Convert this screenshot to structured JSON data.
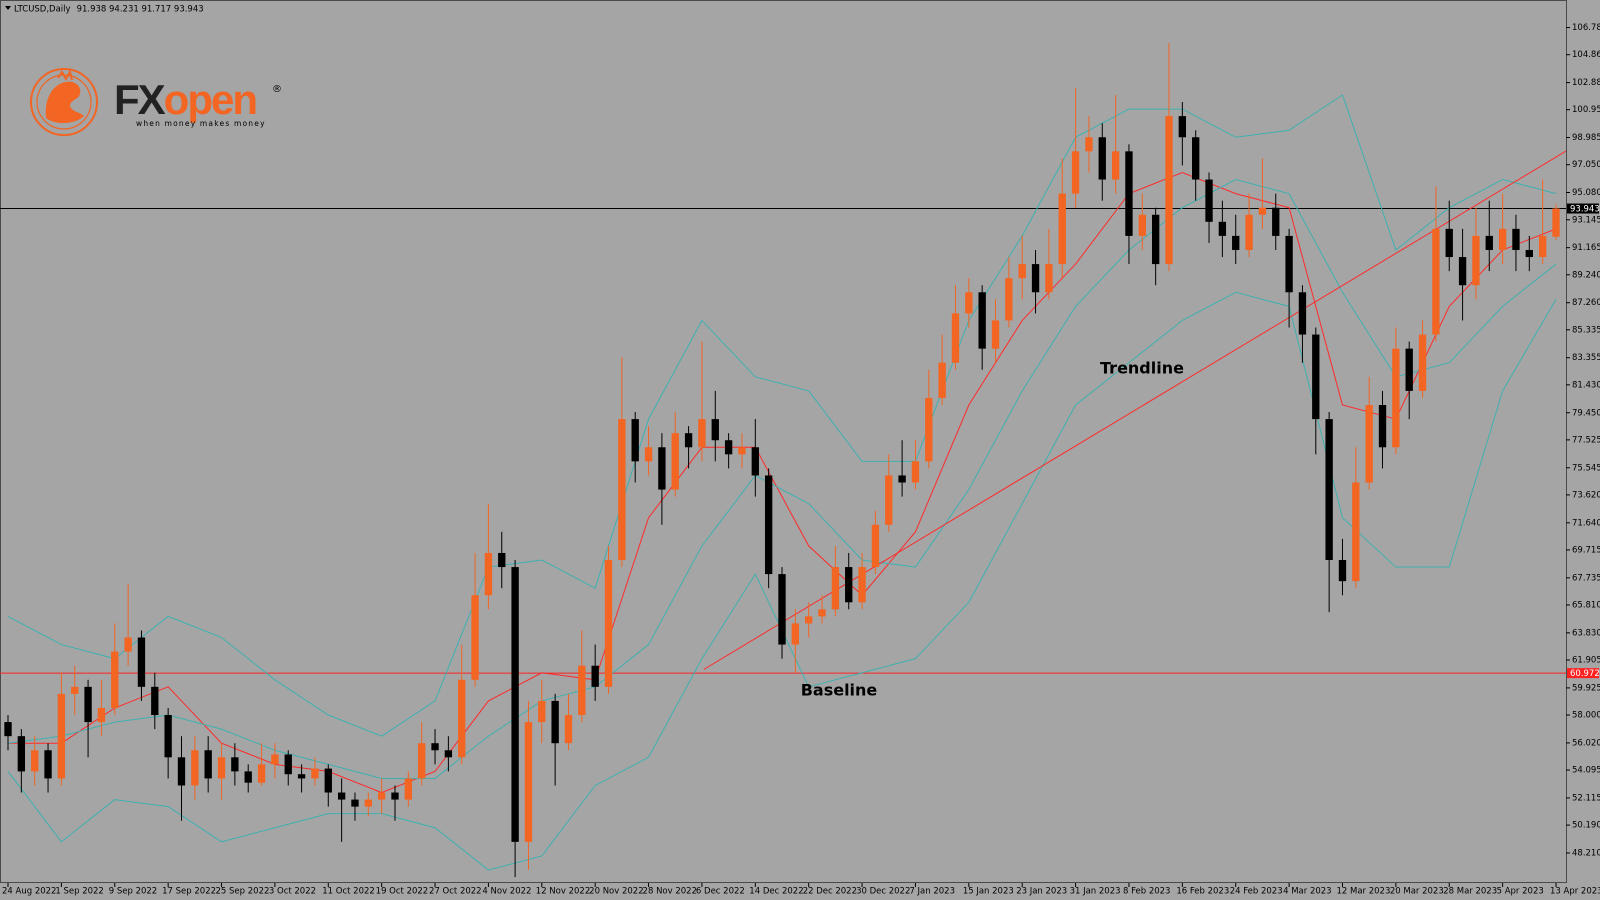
{
  "chart_data": {
    "type": "candlestick",
    "title": "LTCUSD,Daily",
    "quote": "91.938 94.231 91.717 93.943",
    "up_color": "#f26522",
    "down_color": "#000000",
    "xlim": [
      -1.2,
      233.5
    ],
    "ylim": [
      46.08,
      108.74
    ],
    "x": [
      0,
      2,
      4,
      6,
      8,
      10,
      12,
      14,
      16,
      18,
      20,
      22,
      24,
      26,
      28,
      30,
      32,
      34,
      36,
      38,
      40,
      42,
      44,
      46,
      48,
      50,
      52,
      54,
      56,
      58,
      60,
      62,
      64,
      66,
      68,
      70,
      72,
      74,
      76,
      78,
      80,
      82,
      84,
      86,
      88,
      90,
      92,
      94,
      96,
      98,
      100,
      102,
      104,
      106,
      108,
      110,
      112,
      114,
      116,
      118,
      120,
      122,
      124,
      126,
      128,
      130,
      132,
      134,
      136,
      138,
      140,
      142,
      144,
      146,
      148,
      150,
      152,
      154,
      156,
      158,
      160,
      162,
      164,
      166,
      168,
      170,
      172,
      174,
      176,
      178,
      180,
      182,
      184,
      186,
      188,
      190,
      192,
      194,
      196,
      198,
      200,
      202,
      204,
      206,
      208,
      210,
      212,
      214,
      216,
      218,
      220,
      222,
      224,
      226,
      228,
      230,
      232
    ],
    "open": [
      57.5,
      56.5,
      54.0,
      55.5,
      53.5,
      59.5,
      60.0,
      57.5,
      58.5,
      62.5,
      63.5,
      60.0,
      58.0,
      55.0,
      53.0,
      55.5,
      53.5,
      55.0,
      54.0,
      53.2,
      54.5,
      55.2,
      53.8,
      53.5,
      54.2,
      52.5,
      52.0,
      51.5,
      52.0,
      52.5,
      52.0,
      53.5,
      56.0,
      55.5,
      55.0,
      60.5,
      66.5,
      69.5,
      68.5,
      49.0,
      57.5,
      59.0,
      56.0,
      58.0,
      61.5,
      60.0,
      69.0,
      79.0,
      76.0,
      77.0,
      74.0,
      78.0,
      77.0,
      79.0,
      77.5,
      76.5,
      77.0,
      75.0,
      68.0,
      63.0,
      64.5,
      65.0,
      65.5,
      68.5,
      66.0,
      68.5,
      71.5,
      75.0,
      74.5,
      76.0,
      80.5,
      83.0,
      86.5,
      88.0,
      84.0,
      86.0,
      89.0,
      90.0,
      88.0,
      90.0,
      95.0,
      98.0,
      99.0,
      96.0,
      98.0,
      92.0,
      93.5,
      90.0,
      100.5,
      99.0,
      96.0,
      93.0,
      92.0,
      91.0,
      93.5,
      94.0,
      92.0,
      88.0,
      85.0,
      79.0,
      69.0,
      67.5,
      74.5,
      80.0,
      77.0,
      84.0,
      81.0,
      85.0,
      92.5,
      90.5,
      88.5,
      92.0,
      91.0,
      92.5,
      91.0,
      90.5,
      91.938
    ],
    "high": [
      58.0,
      57.0,
      56.5,
      56.0,
      61.0,
      61.5,
      60.5,
      60.5,
      64.5,
      67.3,
      64.0,
      61.0,
      58.5,
      56.5,
      56.5,
      56.5,
      56.0,
      56.0,
      54.5,
      56.0,
      56.0,
      55.5,
      54.5,
      55.0,
      54.5,
      53.5,
      52.5,
      52.5,
      53.5,
      53.0,
      54.0,
      57.5,
      57.0,
      56.5,
      63.0,
      69.5,
      73.0,
      71.0,
      69.0,
      59.0,
      60.5,
      59.5,
      59.5,
      64.0,
      63.0,
      70.0,
      83.4,
      79.5,
      78.5,
      78.0,
      79.5,
      78.5,
      84.5,
      81.0,
      78.0,
      78.0,
      79.0,
      75.5,
      68.5,
      65.5,
      66.0,
      66.5,
      70.0,
      69.5,
      69.5,
      72.5,
      76.5,
      77.5,
      77.5,
      82.5,
      85.0,
      88.5,
      89.0,
      88.5,
      87.5,
      90.5,
      92.0,
      91.0,
      92.5,
      97.5,
      102.5,
      100.5,
      100.0,
      102.0,
      98.5,
      95.0,
      94.0,
      105.7,
      101.5,
      99.5,
      96.5,
      94.5,
      93.5,
      95.0,
      97.5,
      95.0,
      92.5,
      88.5,
      85.5,
      79.5,
      70.5,
      77.0,
      82.0,
      81.0,
      85.5,
      84.5,
      86.0,
      95.5,
      94.5,
      92.5,
      94.0,
      94.5,
      95.0,
      93.5,
      92.0,
      96.0,
      94.231
    ],
    "low": [
      55.5,
      52.5,
      53.0,
      52.5,
      53.0,
      58.0,
      55.0,
      56.5,
      58.0,
      61.5,
      59.0,
      57.0,
      53.5,
      50.5,
      52.0,
      52.5,
      52.0,
      53.0,
      52.5,
      53.0,
      53.5,
      53.0,
      52.5,
      53.0,
      51.5,
      49.0,
      50.5,
      50.8,
      51.0,
      50.5,
      51.5,
      53.0,
      54.5,
      54.0,
      54.5,
      60.0,
      65.5,
      67.0,
      46.5,
      47.0,
      56.0,
      53.0,
      55.5,
      57.5,
      59.0,
      59.5,
      68.5,
      74.5,
      75.0,
      71.5,
      73.5,
      75.5,
      76.0,
      76.0,
      75.5,
      75.5,
      73.5,
      67.0,
      62.0,
      61.0,
      63.5,
      64.5,
      65.0,
      65.5,
      65.5,
      68.0,
      71.0,
      73.5,
      74.0,
      75.5,
      80.0,
      82.5,
      85.5,
      82.5,
      83.0,
      85.5,
      87.5,
      86.5,
      87.5,
      89.0,
      94.0,
      96.5,
      94.5,
      95.0,
      90.0,
      91.0,
      88.5,
      89.5,
      97.0,
      94.5,
      91.5,
      90.5,
      90.0,
      90.5,
      92.5,
      91.0,
      85.5,
      83.0,
      76.5,
      65.3,
      66.5,
      67.0,
      74.0,
      75.5,
      76.5,
      79.0,
      80.5,
      84.5,
      89.5,
      86.0,
      87.5,
      89.5,
      90.0,
      89.5,
      89.5,
      90.0,
      91.717
    ],
    "close": [
      56.5,
      54.0,
      55.5,
      53.5,
      59.5,
      60.0,
      57.5,
      58.5,
      62.5,
      63.5,
      60.0,
      58.0,
      55.0,
      53.0,
      55.5,
      53.5,
      55.0,
      54.0,
      53.2,
      54.5,
      55.2,
      53.8,
      53.5,
      54.2,
      52.5,
      52.0,
      51.5,
      52.0,
      52.5,
      52.0,
      53.5,
      56.0,
      55.5,
      55.0,
      60.5,
      66.5,
      69.5,
      68.5,
      49.0,
      57.5,
      59.0,
      56.0,
      58.0,
      61.5,
      60.0,
      69.0,
      79.0,
      76.0,
      77.0,
      74.0,
      78.0,
      77.0,
      79.0,
      77.5,
      76.5,
      77.0,
      75.0,
      68.0,
      63.0,
      64.5,
      65.0,
      65.5,
      68.5,
      66.0,
      68.5,
      71.5,
      75.0,
      74.5,
      76.0,
      80.5,
      83.0,
      86.5,
      88.0,
      84.0,
      86.0,
      89.0,
      90.0,
      88.0,
      90.0,
      95.0,
      98.0,
      99.0,
      96.0,
      98.0,
      92.0,
      93.5,
      90.0,
      100.5,
      99.0,
      96.0,
      93.0,
      92.0,
      91.0,
      93.5,
      94.0,
      92.0,
      88.0,
      85.0,
      79.0,
      69.0,
      67.5,
      74.5,
      80.0,
      77.0,
      84.0,
      81.0,
      85.0,
      92.5,
      90.5,
      88.5,
      92.0,
      91.0,
      92.5,
      91.0,
      90.5,
      92.0,
      93.943
    ],
    "overlays": [
      {
        "color": "#ff2a2a",
        "x": [
          0,
          8,
          16,
          24,
          32,
          40,
          48,
          56,
          64,
          72,
          80,
          88,
          96,
          104,
          112,
          120,
          128,
          136,
          144,
          152,
          160,
          168,
          176,
          184,
          192,
          200,
          208,
          216,
          224,
          232
        ],
        "values": [
          56,
          56,
          58.5,
          60,
          56,
          54.5,
          54,
          52.5,
          54,
          59,
          61,
          60.5,
          72,
          77,
          77,
          70,
          66.5,
          71,
          80,
          86,
          90,
          95,
          96.5,
          95,
          94,
          80,
          79,
          87,
          91,
          92.5
        ]
      },
      {
        "color": "#3fb0b0",
        "x": [
          0,
          8,
          16,
          24,
          32,
          40,
          48,
          56,
          64,
          72,
          80,
          88,
          96,
          104,
          112,
          120,
          128,
          136,
          144,
          152,
          160,
          168,
          176,
          184,
          192,
          200,
          208,
          216,
          224,
          232
        ],
        "values": [
          56,
          56.5,
          57.5,
          58,
          57,
          55.5,
          54.5,
          53.5,
          53.5,
          56.5,
          59,
          60,
          63,
          70,
          75,
          73,
          69,
          68.5,
          74,
          81,
          87,
          91,
          94,
          96,
          95,
          88,
          82,
          83,
          87,
          90
        ]
      },
      {
        "color": "#3fb0b0",
        "x": [
          0,
          8,
          16,
          24,
          32,
          40,
          48,
          56,
          64,
          72,
          80,
          88,
          96,
          104,
          112,
          120,
          128,
          136,
          144,
          152,
          160,
          168,
          176,
          184,
          192,
          200,
          208,
          216,
          224,
          232
        ],
        "values": [
          65,
          63,
          62,
          65,
          63.5,
          60.5,
          58,
          56.5,
          59,
          68.5,
          69,
          67,
          79,
          86,
          82,
          81,
          76,
          76,
          86,
          92,
          99,
          101,
          101,
          99,
          99.5,
          102,
          91,
          94,
          96,
          95
        ]
      },
      {
        "color": "#3fb0b0",
        "x": [
          0,
          8,
          16,
          24,
          32,
          40,
          48,
          56,
          64,
          72,
          80,
          88,
          96,
          104,
          112,
          120,
          128,
          136,
          144,
          152,
          160,
          168,
          176,
          184,
          192,
          200,
          208,
          216,
          224,
          232
        ],
        "values": [
          54,
          49,
          52,
          51.5,
          49,
          50,
          51,
          51,
          50,
          47,
          48,
          53,
          55,
          62,
          68,
          60,
          61,
          62,
          66,
          73,
          80,
          83,
          86,
          88,
          87,
          72,
          68.5,
          68.5,
          81,
          87.5
        ]
      }
    ],
    "trendline": {
      "color": "#ff2a2a",
      "x": [
        104.3,
        233.5
      ],
      "values": [
        61.24,
        98.02
      ]
    },
    "hlines": [
      {
        "value": 93.943,
        "color": "#000000"
      },
      {
        "value": 60.972,
        "color": "#ff2020"
      }
    ],
    "annotations": [
      "Trendline",
      "Baseline"
    ],
    "yticks": [
      106.785,
      {
        "value": 104.86,
        "label": "104.860"
      },
      {
        "value": 102.88,
        "label": "102.880"
      },
      100.955,
      98.985,
      {
        "value": 97.05,
        "label": "97.050"
      },
      {
        "value": 95.08,
        "label": "95.080"
      },
      93.145,
      91.165,
      {
        "value": 89.24,
        "label": "89.240"
      },
      {
        "value": 87.26,
        "label": "87.260"
      },
      85.335,
      83.355,
      {
        "value": 81.43,
        "label": "81.430"
      },
      {
        "value": 79.45,
        "label": "79.450"
      },
      77.525,
      75.545,
      {
        "value": 73.62,
        "label": "73.620"
      },
      {
        "value": 71.64,
        "label": "71.640"
      },
      69.715,
      67.735,
      {
        "value": 65.81,
        "label": "65.810"
      },
      {
        "value": 63.83,
        "label": "63.830"
      },
      61.905,
      59.925,
      {
        "value": 58,
        "label": "58.000"
      },
      {
        "value": 56.02,
        "label": "56.020"
      },
      54.095,
      52.115,
      {
        "value": 50.19,
        "label": "50.190"
      },
      {
        "value": 48.21,
        "label": "48.210"
      }
    ],
    "xticks": [
      {
        "value": 0,
        "label": "24 Aug 2022"
      },
      {
        "value": 8,
        "label": "1 Sep 2022"
      },
      {
        "value": 16,
        "label": "9 Sep 2022"
      },
      {
        "value": 24,
        "label": "17 Sep 2022"
      },
      {
        "value": 32,
        "label": "25 Sep 2022"
      },
      {
        "value": 40,
        "label": "3 Oct 2022"
      },
      {
        "value": 48,
        "label": "11 Oct 2022"
      },
      {
        "value": 56,
        "label": "19 Oct 2022"
      },
      {
        "value": 64,
        "label": "27 Oct 2022"
      },
      {
        "value": 72,
        "label": "4 Nov 2022"
      },
      {
        "value": 80,
        "label": "12 Nov 2022"
      },
      {
        "value": 88,
        "label": "20 Nov 2022"
      },
      {
        "value": 96,
        "label": "28 Nov 2022"
      },
      {
        "value": 104,
        "label": "6 Dec 2022"
      },
      {
        "value": 112,
        "label": "14 Dec 2022"
      },
      {
        "value": 120,
        "label": "22 Dec 2022"
      },
      {
        "value": 128,
        "label": "30 Dec 2022"
      },
      {
        "value": 136,
        "label": "7 Jan 2023"
      },
      {
        "value": 144,
        "label": "15 Jan 2023"
      },
      {
        "value": 152,
        "label": "23 Jan 2023"
      },
      {
        "value": 160,
        "label": "31 Jan 2023"
      },
      {
        "value": 168,
        "label": "8 Feb 2023"
      },
      {
        "value": 176,
        "label": "16 Feb 2023"
      },
      {
        "value": 184,
        "label": "24 Feb 2023"
      },
      {
        "value": 192,
        "label": "4 Mar 2023"
      },
      {
        "value": 200,
        "label": "12 Mar 2023"
      },
      {
        "value": 208,
        "label": "20 Mar 2023"
      },
      {
        "value": 216,
        "label": "28 Mar 2023"
      },
      {
        "value": 224,
        "label": "5 Apr 2023"
      },
      {
        "value": 232,
        "label": "13 Apr 2023"
      }
    ]
  },
  "logo": {
    "brand_prefix": "FX",
    "brand_suffix": "open",
    "registered": "®",
    "tagline": "when money makes money"
  }
}
